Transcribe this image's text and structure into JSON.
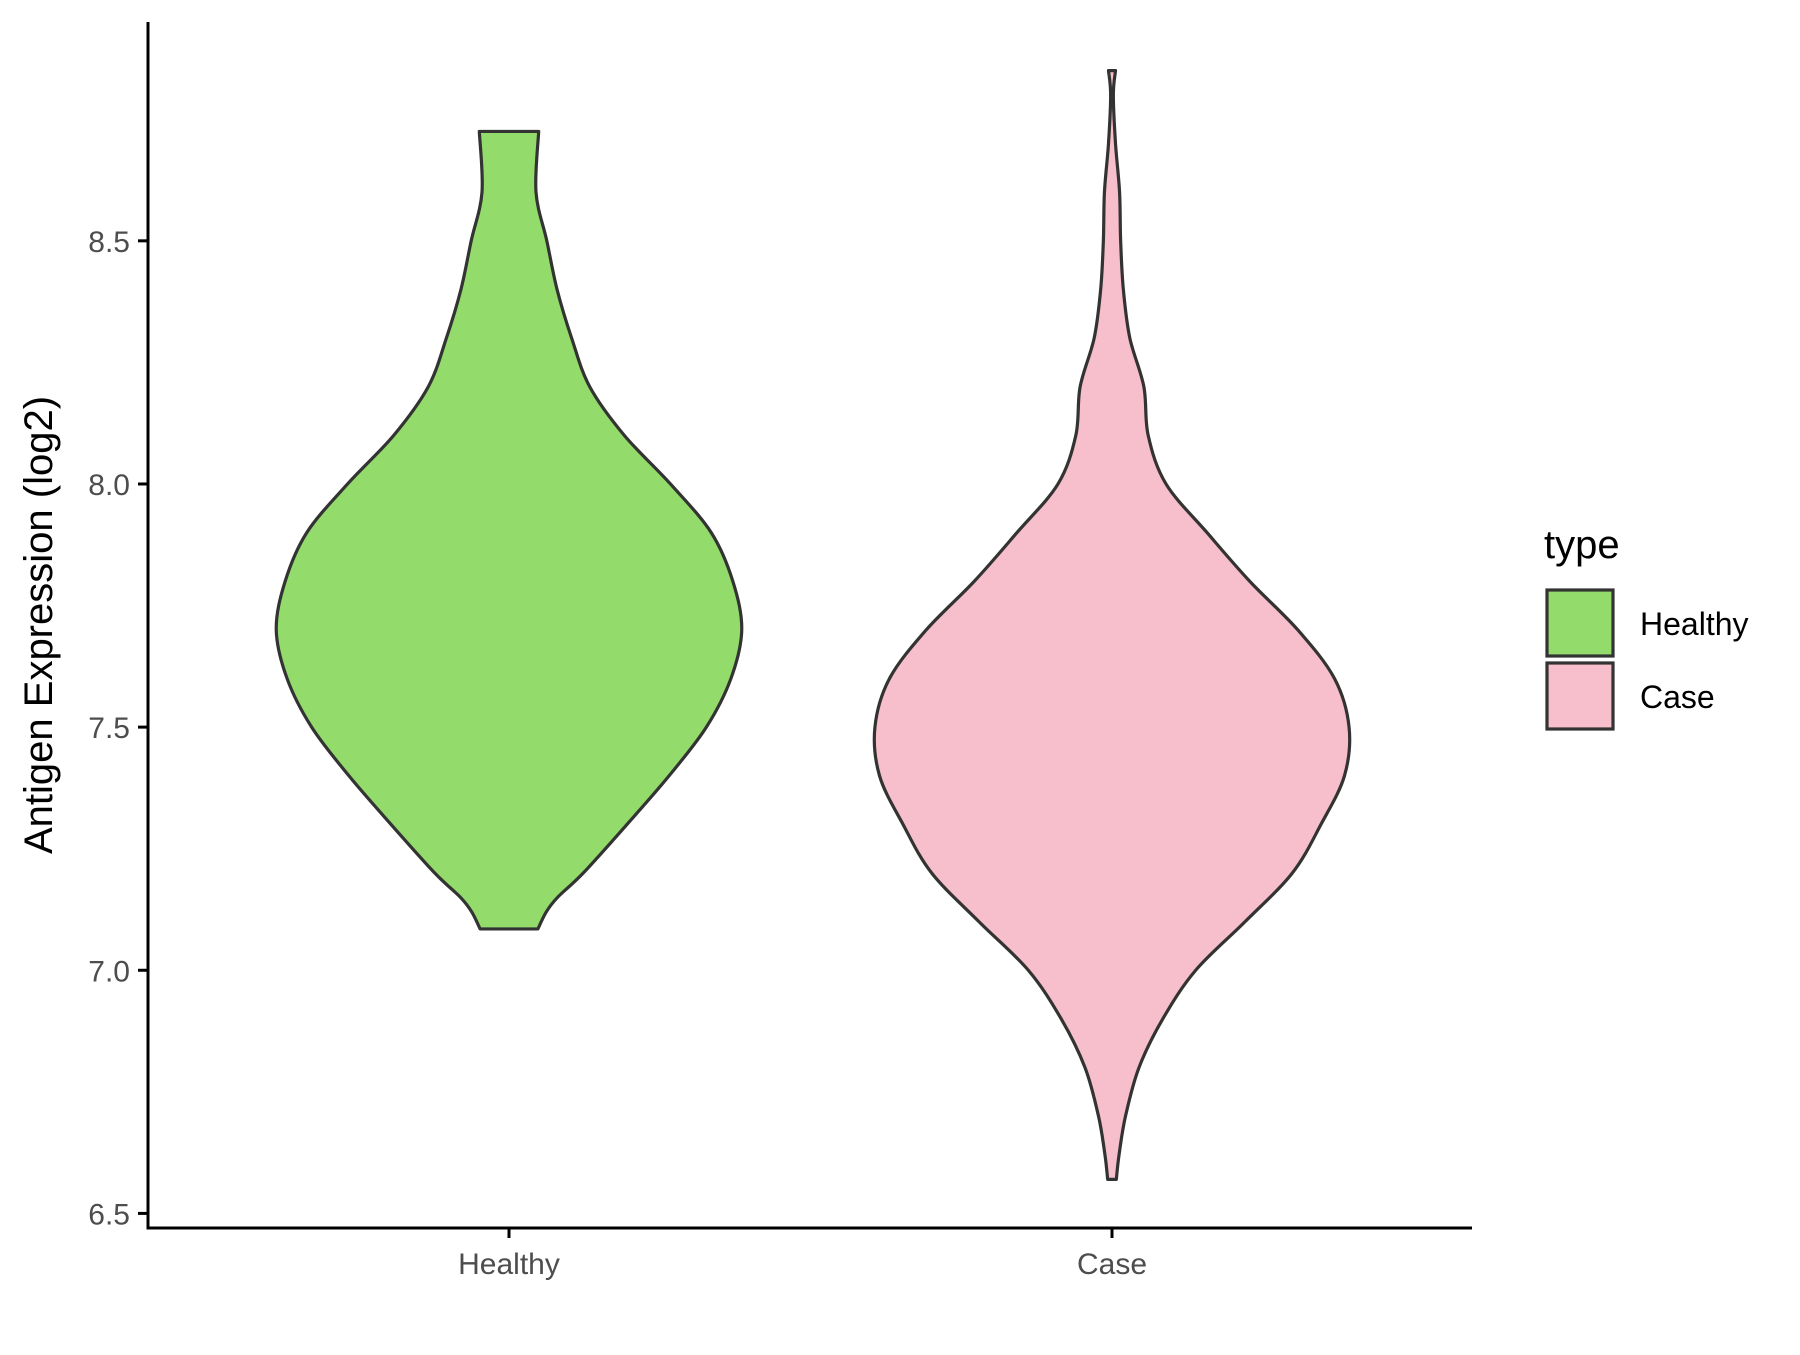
{
  "chart_data": {
    "type": "violin",
    "title": "",
    "xlabel": "",
    "ylabel": "Antigen Expression (log2)",
    "ylim": [
      6.47,
      8.95
    ],
    "yticks": [
      6.5,
      7.0,
      7.5,
      8.0,
      8.5
    ],
    "ytick_labels": [
      "6.5",
      "7.0",
      "7.5",
      "8.0",
      "8.5"
    ],
    "categories": [
      "Healthy",
      "Case"
    ],
    "grid": false,
    "legend": {
      "title": "type",
      "placement": "right",
      "entries": [
        {
          "label": "Healthy",
          "color": "#93dc6b"
        },
        {
          "label": "Case",
          "color": "#f7bfcb"
        }
      ]
    },
    "outline_color": "#333333",
    "series": [
      {
        "name": "Healthy",
        "color": "#93dc6b",
        "min": 7.085,
        "max": 8.725,
        "profile": [
          [
            7.085,
            0.107
          ],
          [
            7.12,
            0.138
          ],
          [
            7.15,
            0.18
          ],
          [
            7.2,
            0.275
          ],
          [
            7.3,
            0.437
          ],
          [
            7.4,
            0.593
          ],
          [
            7.5,
            0.731
          ],
          [
            7.6,
            0.822
          ],
          [
            7.7,
            0.862
          ],
          [
            7.8,
            0.829
          ],
          [
            7.9,
            0.749
          ],
          [
            8.0,
            0.598
          ],
          [
            8.1,
            0.427
          ],
          [
            8.2,
            0.299
          ],
          [
            8.3,
            0.232
          ],
          [
            8.4,
            0.178
          ],
          [
            8.5,
            0.14
          ],
          [
            8.6,
            0.1
          ],
          [
            8.725,
            0.11
          ]
        ]
      },
      {
        "name": "Case",
        "color": "#f7bfcb",
        "min": 6.57,
        "max": 8.85,
        "profile": [
          [
            6.57,
            0.016
          ],
          [
            6.62,
            0.026
          ],
          [
            6.7,
            0.05
          ],
          [
            6.8,
            0.1
          ],
          [
            6.9,
            0.188
          ],
          [
            7.0,
            0.31
          ],
          [
            7.1,
            0.493
          ],
          [
            7.2,
            0.668
          ],
          [
            7.3,
            0.774
          ],
          [
            7.4,
            0.861
          ],
          [
            7.5,
            0.878
          ],
          [
            7.6,
            0.824
          ],
          [
            7.7,
            0.688
          ],
          [
            7.8,
            0.51
          ],
          [
            7.9,
            0.352
          ],
          [
            8.0,
            0.2
          ],
          [
            8.1,
            0.134
          ],
          [
            8.2,
            0.118
          ],
          [
            8.3,
            0.066
          ],
          [
            8.4,
            0.042
          ],
          [
            8.5,
            0.032
          ],
          [
            8.6,
            0.028
          ],
          [
            8.7,
            0.013
          ],
          [
            8.8,
            0.005
          ],
          [
            8.85,
            0.013
          ]
        ]
      }
    ]
  }
}
